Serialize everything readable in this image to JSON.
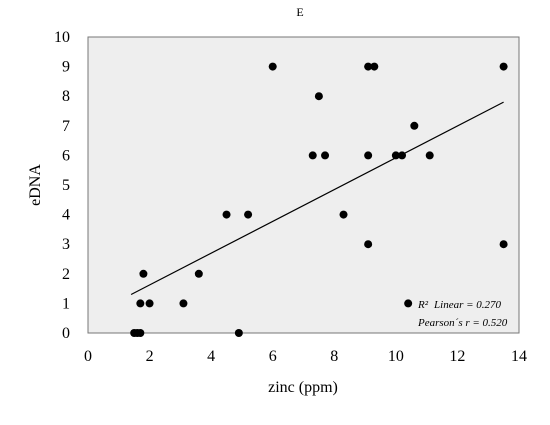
{
  "chart_data": {
    "type": "scatter",
    "title": "E",
    "xlabel": "zinc (ppm)",
    "ylabel": "eDNA",
    "xlim": [
      0,
      14
    ],
    "ylim": [
      0,
      10
    ],
    "x_ticks": [
      0,
      2,
      4,
      6,
      8,
      10,
      12,
      14
    ],
    "y_ticks": [
      0,
      1,
      2,
      3,
      4,
      5,
      6,
      7,
      8,
      9,
      10
    ],
    "grid": false,
    "legend": "none",
    "plot_background": "#eeeeee",
    "marker_color": "#000000",
    "trendline": {
      "type": "linear",
      "x_range": [
        1.4,
        13.5
      ],
      "y_range": [
        1.3,
        7.8
      ]
    },
    "points": [
      {
        "x": 1.5,
        "y": 0
      },
      {
        "x": 1.6,
        "y": 0
      },
      {
        "x": 1.7,
        "y": 0
      },
      {
        "x": 1.7,
        "y": 1
      },
      {
        "x": 1.8,
        "y": 2
      },
      {
        "x": 2.0,
        "y": 1
      },
      {
        "x": 3.1,
        "y": 1
      },
      {
        "x": 3.6,
        "y": 2
      },
      {
        "x": 4.5,
        "y": 4
      },
      {
        "x": 4.9,
        "y": 0
      },
      {
        "x": 5.2,
        "y": 4
      },
      {
        "x": 6.0,
        "y": 9
      },
      {
        "x": 7.3,
        "y": 6
      },
      {
        "x": 7.5,
        "y": 8
      },
      {
        "x": 7.7,
        "y": 6
      },
      {
        "x": 8.3,
        "y": 4
      },
      {
        "x": 9.1,
        "y": 9
      },
      {
        "x": 9.3,
        "y": 9
      },
      {
        "x": 9.1,
        "y": 6
      },
      {
        "x": 9.1,
        "y": 3
      },
      {
        "x": 10.0,
        "y": 6
      },
      {
        "x": 10.2,
        "y": 6
      },
      {
        "x": 10.4,
        "y": 1
      },
      {
        "x": 10.6,
        "y": 7
      },
      {
        "x": 11.1,
        "y": 6
      },
      {
        "x": 13.5,
        "y": 9
      },
      {
        "x": 13.5,
        "y": 3
      }
    ],
    "annotation": {
      "r2_symbol": "R²",
      "r2_rest": "Linear = 0.270",
      "pearson": "Pearson´s r = 0.520"
    }
  }
}
